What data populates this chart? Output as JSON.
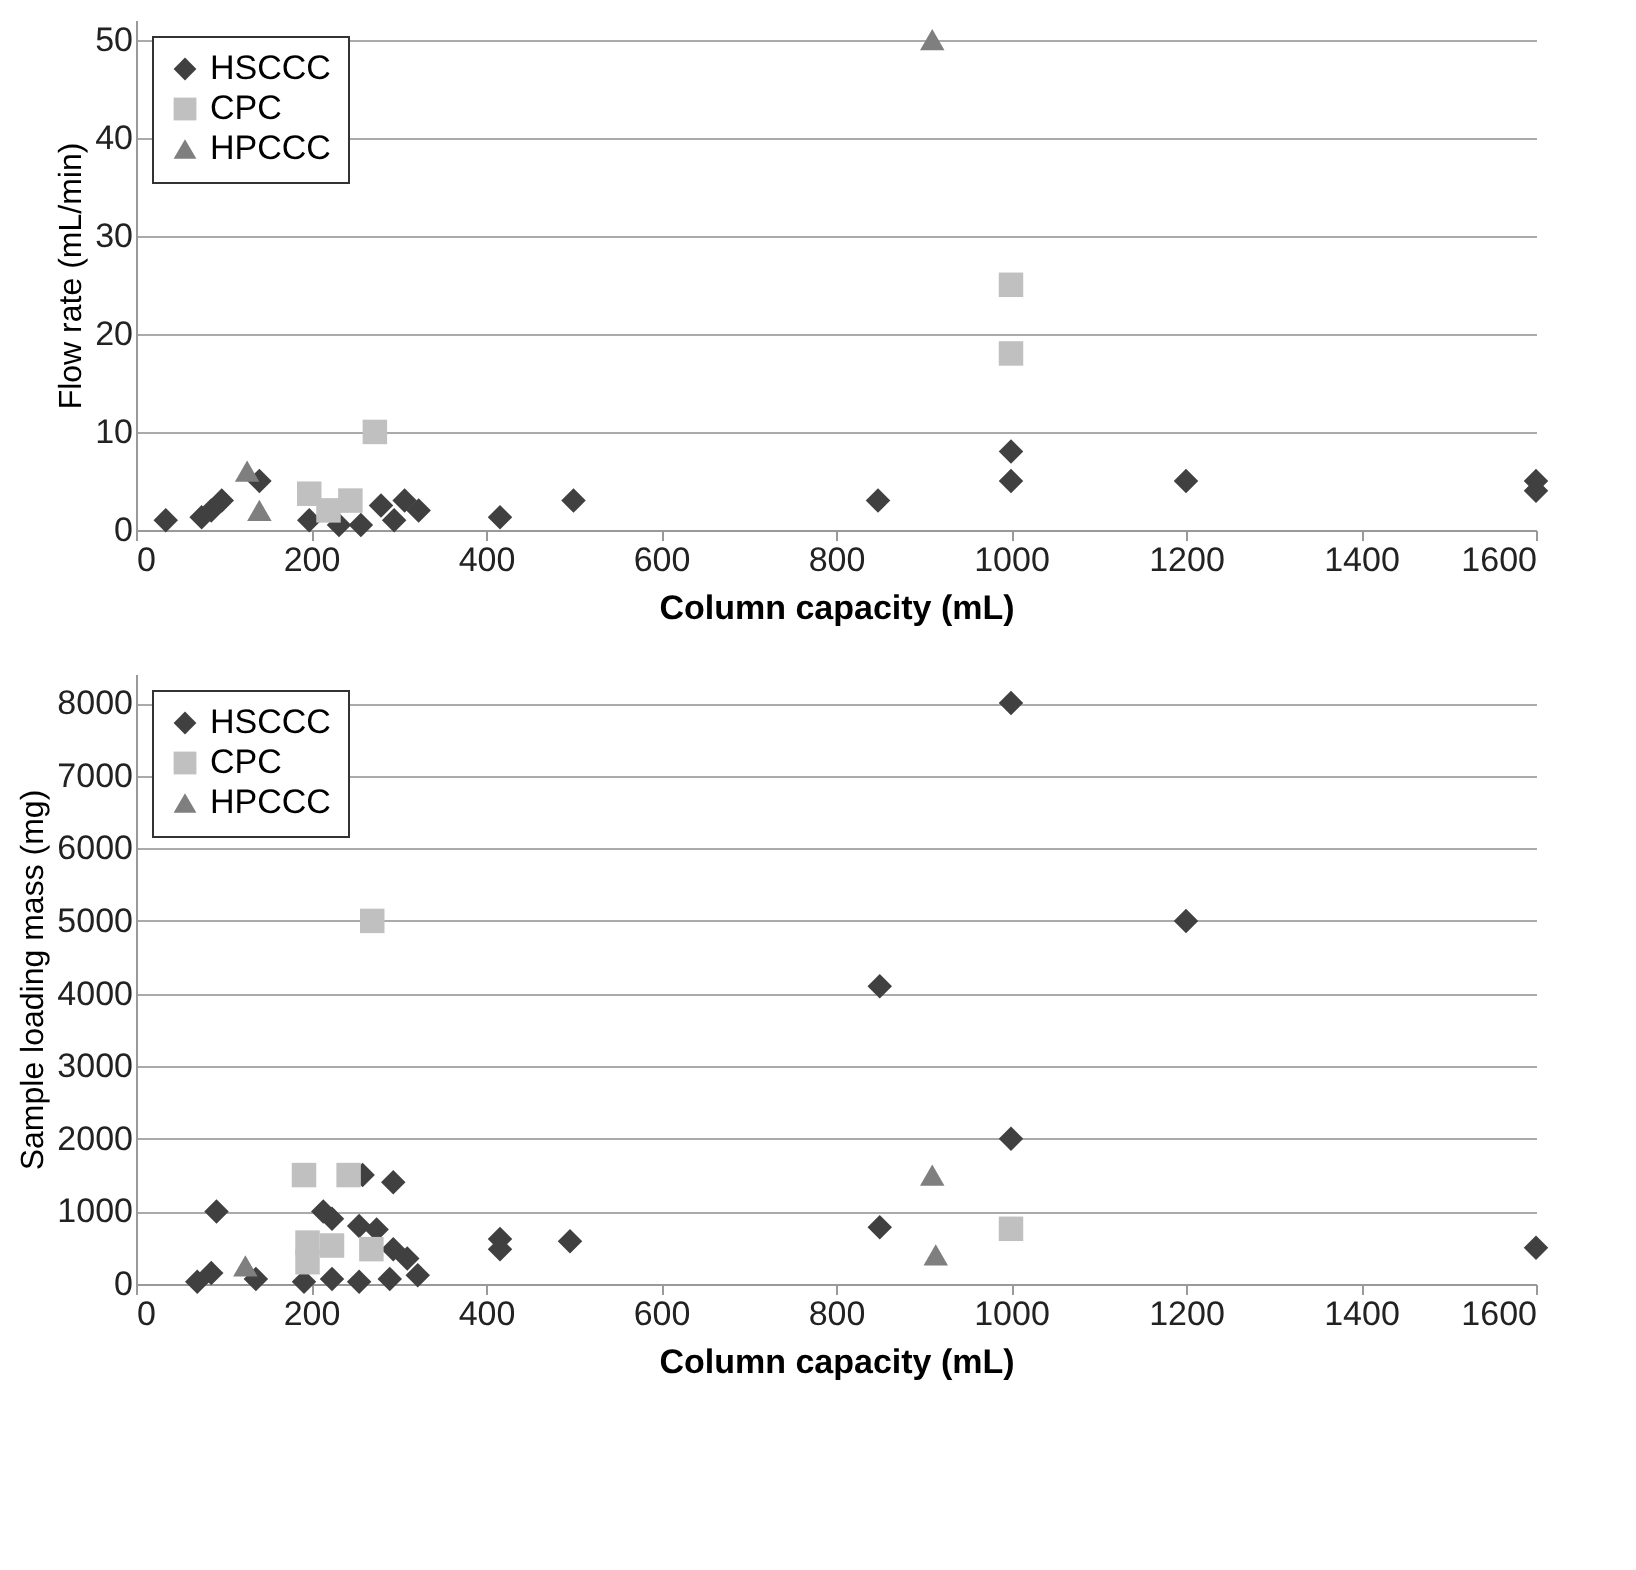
{
  "chart_data": [
    {
      "type": "scatter",
      "xlabel": "Column capacity (mL)",
      "ylabel": "Flow rate (mL/min)",
      "xlim": [
        0,
        1600
      ],
      "xticks": [
        0,
        200,
        400,
        600,
        800,
        1000,
        1200,
        1400,
        1600
      ],
      "ylim": [
        0,
        52
      ],
      "yticks": [
        0,
        10,
        20,
        30,
        40,
        50
      ],
      "grid": "y",
      "legend": "top left",
      "series": [
        {
          "name": "HSCCC",
          "color": "#404040",
          "marker": "diamond",
          "x": [
            34,
            75,
            86,
            98,
            141,
            198,
            232,
            257,
            280,
            295,
            307,
            323,
            416,
            500,
            848,
            1000,
            1000,
            1200,
            1600,
            1600
          ],
          "values": [
            1,
            1.3,
            2,
            3,
            5,
            1,
            0.5,
            0.5,
            2.5,
            1,
            3,
            2,
            1.3,
            3,
            3,
            8,
            5,
            5,
            5,
            4
          ]
        },
        {
          "name": "CPC",
          "color": "#c0c0c0",
          "marker": "square",
          "x": [
            198,
            220,
            245,
            273,
            1000,
            1000
          ],
          "values": [
            3.7,
            2,
            3,
            10,
            25,
            18
          ]
        },
        {
          "name": "HPCCC",
          "color": "#7f7f7f",
          "marker": "triangle",
          "x": [
            127,
            141,
            910
          ],
          "values": [
            6,
            2,
            50
          ]
        }
      ]
    },
    {
      "type": "scatter",
      "xlabel": "Column capacity (mL)",
      "ylabel": "Sample loading mass (mg)",
      "xlim": [
        0,
        1600
      ],
      "xticks": [
        0,
        200,
        400,
        600,
        800,
        1000,
        1200,
        1400,
        1600
      ],
      "ylim": [
        0,
        8400
      ],
      "yticks": [
        0,
        1000,
        2000,
        3000,
        4000,
        5000,
        6000,
        7000,
        8000
      ],
      "grid": "y",
      "legend": "top left",
      "series": [
        {
          "name": "HSCCC",
          "color": "#404040",
          "marker": "diamond",
          "x": [
            70,
            86,
            92,
            137,
            192,
            214,
            224,
            224,
            255,
            255,
            259,
            275,
            294,
            290,
            294,
            310,
            322,
            416,
            416,
            496,
            850,
            850,
            1000,
            1000,
            1200,
            1600
          ],
          "values": [
            30,
            150,
            1000,
            70,
            30,
            1000,
            900,
            70,
            30,
            800,
            1500,
            750,
            1400,
            70,
            480,
            350,
            120,
            620,
            480,
            590,
            4100,
            780,
            8000,
            2000,
            5000,
            500
          ]
        },
        {
          "name": "CPC",
          "color": "#c0c0c0",
          "marker": "square",
          "x": [
            192,
            243,
            196,
            196,
            224,
            269,
            270,
            1000
          ],
          "values": [
            1500,
            1500,
            570,
            300,
            530,
            480,
            5000,
            760
          ]
        },
        {
          "name": "HPCCC",
          "color": "#7f7f7f",
          "marker": "triangle",
          "x": [
            125,
            910,
            914
          ],
          "values": [
            250,
            1500,
            400
          ]
        }
      ]
    }
  ]
}
